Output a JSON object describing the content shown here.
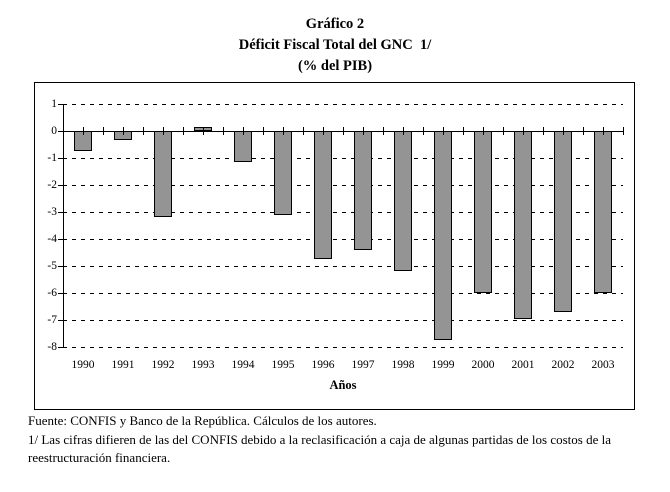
{
  "title": {
    "caption": "Gráfico 2",
    "subtitle": "Déficit Fiscal Total del GNC  1/",
    "units": "(% del PIB)"
  },
  "chart_data": {
    "type": "bar",
    "title": "Déficit Fiscal Total del GNC (% del PIB)",
    "categories": [
      "1990",
      "1991",
      "1992",
      "1993",
      "1994",
      "1995",
      "1996",
      "1997",
      "1998",
      "1999",
      "2000",
      "2001",
      "2002",
      "2003"
    ],
    "values": [
      -0.75,
      -0.35,
      -3.2,
      0.15,
      -1.15,
      -3.1,
      -4.75,
      -4.4,
      -5.2,
      -7.75,
      -6.0,
      -6.95,
      -6.7,
      -6.0
    ],
    "xlabel": "Años",
    "ylabel": "",
    "ylim": [
      -8,
      1
    ],
    "yticks": [
      1,
      0,
      -1,
      -2,
      -3,
      -4,
      -5,
      -6,
      -7,
      -8
    ],
    "grid": "horizontal-dashed",
    "legend": "none",
    "bar_color": "#949494",
    "bar_border_color": "#000000"
  },
  "footer": {
    "fuente": "Fuente: CONFIS y Banco de la República. Cálculos de los autores.",
    "nota": "1/ Las cifras difieren de las del CONFIS debido a la reclasificación a caja de algunas partidas de los costos de la reestructuración financiera."
  }
}
